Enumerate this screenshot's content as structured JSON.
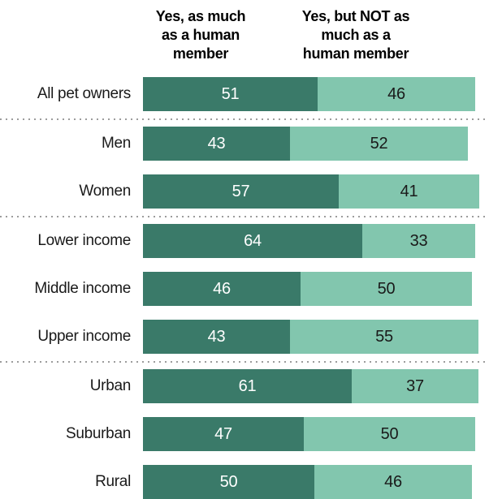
{
  "chart_data": {
    "type": "bar",
    "variant": "horizontal-stacked",
    "title": "",
    "xlabel": "",
    "ylabel": "",
    "xlim": [
      0,
      100
    ],
    "grid": false,
    "legend_position": "top-column-headers",
    "series_labels": [
      "Yes, as much as a human member",
      "Yes, but NOT as much as a human member"
    ],
    "legend": {
      "col1_lines": [
        "Yes, as much",
        "as a human",
        "member"
      ],
      "col2_lines": [
        "Yes, but NOT as",
        "much as a",
        "human member"
      ]
    },
    "groups": [
      {
        "rows": [
          {
            "label": "All pet owners",
            "values": [
              51,
              46
            ]
          }
        ]
      },
      {
        "rows": [
          {
            "label": "Men",
            "values": [
              43,
              52
            ]
          },
          {
            "label": "Women",
            "values": [
              57,
              41
            ]
          }
        ]
      },
      {
        "rows": [
          {
            "label": "Lower income",
            "values": [
              64,
              33
            ]
          },
          {
            "label": "Middle income",
            "values": [
              46,
              50
            ]
          },
          {
            "label": "Upper income",
            "values": [
              43,
              55
            ]
          }
        ]
      },
      {
        "rows": [
          {
            "label": "Urban",
            "values": [
              61,
              37
            ]
          },
          {
            "label": "Suburban",
            "values": [
              47,
              50
            ]
          },
          {
            "label": "Rural",
            "values": [
              50,
              46
            ]
          }
        ]
      }
    ],
    "colors": {
      "series1": "#3a7a69",
      "series2": "#82c6ae",
      "value_on_series1": "#ffffff",
      "value_on_series2": "#1a1a1a",
      "category_label": "#1a1a1a",
      "header_text": "#000000",
      "separator_dots": "#9c9c9c"
    }
  }
}
